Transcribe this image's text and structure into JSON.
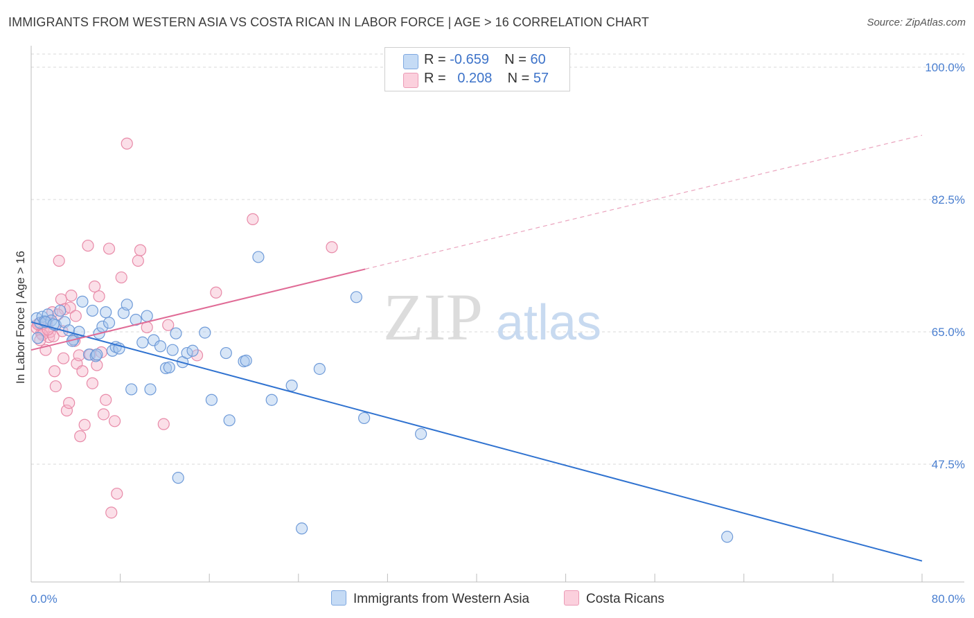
{
  "title": "IMMIGRANTS FROM WESTERN ASIA VS COSTA RICAN IN LABOR FORCE | AGE > 16 CORRELATION CHART",
  "source": "Source: ZipAtlas.com",
  "watermark": {
    "zip": "ZIP",
    "atlas": "atlas"
  },
  "legend": {
    "r_label": "R =",
    "n_label": "N =",
    "series": [
      {
        "name": "Immigrants from Western Asia",
        "r": "-0.659",
        "n": "60"
      },
      {
        "name": "Costa Ricans",
        "r": "0.208",
        "n": "57"
      }
    ]
  },
  "colors": {
    "blue_fill": "#a9c8ee",
    "blue_stroke": "#6e9ad8",
    "blue_line": "#2f72d0",
    "pink_fill": "#f6b9cb",
    "pink_stroke": "#e88aa8",
    "pink_line": "#e06b96",
    "tick": "#4a7fd0",
    "grid": "#d9d9d9"
  },
  "chart_data": {
    "type": "scatter",
    "title": "IMMIGRANTS FROM WESTERN ASIA VS COSTA RICAN IN LABOR FORCE | AGE > 16 CORRELATION CHART",
    "xlabel": "",
    "ylabel": "In Labor Force | Age > 16",
    "xlim": [
      0,
      80
    ],
    "ylim": [
      32.5,
      102
    ],
    "x_tick_labels": [
      "0.0%",
      "80.0%"
    ],
    "y_ticks": [
      47.5,
      65.0,
      82.5,
      100.0
    ],
    "y_tick_labels": [
      "47.5%",
      "65.0%",
      "82.5%",
      "100.0%"
    ],
    "grid": true,
    "series": [
      {
        "name": "Immigrants from Western Asia",
        "color": "blue",
        "points": [
          [
            0.5,
            66.8
          ],
          [
            0.8,
            66.2
          ],
          [
            1.0,
            67.0
          ],
          [
            1.2,
            66.4
          ],
          [
            1.5,
            67.3
          ],
          [
            1.8,
            66.5
          ],
          [
            2.2,
            65.9
          ],
          [
            2.6,
            67.8
          ],
          [
            3.0,
            66.3
          ],
          [
            3.4,
            65.2
          ],
          [
            3.8,
            64.0
          ],
          [
            4.3,
            65.0
          ],
          [
            4.6,
            69.0
          ],
          [
            5.2,
            62.0
          ],
          [
            5.5,
            67.8
          ],
          [
            5.8,
            61.8
          ],
          [
            6.1,
            64.8
          ],
          [
            6.4,
            65.7
          ],
          [
            6.7,
            67.6
          ],
          [
            7.0,
            66.2
          ],
          [
            7.3,
            62.5
          ],
          [
            7.6,
            63.0
          ],
          [
            7.9,
            62.8
          ],
          [
            8.3,
            67.5
          ],
          [
            8.6,
            68.6
          ],
          [
            9.0,
            57.4
          ],
          [
            9.4,
            66.6
          ],
          [
            10.0,
            63.6
          ],
          [
            10.4,
            67.1
          ],
          [
            10.7,
            57.4
          ],
          [
            11.0,
            63.9
          ],
          [
            11.6,
            63.1
          ],
          [
            12.1,
            60.2
          ],
          [
            12.4,
            60.3
          ],
          [
            12.7,
            62.6
          ],
          [
            13.0,
            64.8
          ],
          [
            13.6,
            61.0
          ],
          [
            14.0,
            62.2
          ],
          [
            14.5,
            62.5
          ],
          [
            15.6,
            64.9
          ],
          [
            16.2,
            56.0
          ],
          [
            17.5,
            62.2
          ],
          [
            17.8,
            53.3
          ],
          [
            19.1,
            61.1
          ],
          [
            19.3,
            61.2
          ],
          [
            20.4,
            74.9
          ],
          [
            21.6,
            56.0
          ],
          [
            23.4,
            57.9
          ],
          [
            24.3,
            39.0
          ],
          [
            25.9,
            60.1
          ],
          [
            29.2,
            69.6
          ],
          [
            29.9,
            53.6
          ],
          [
            35.0,
            51.5
          ],
          [
            62.5,
            37.9
          ],
          [
            13.2,
            45.7
          ],
          [
            3.7,
            63.8
          ],
          [
            1.3,
            66.3
          ],
          [
            2.0,
            66.0
          ],
          [
            5.9,
            62.0
          ],
          [
            0.6,
            64.2
          ]
        ]
      },
      {
        "name": "Costa Ricans",
        "color": "pink",
        "points": [
          [
            0.5,
            65.5
          ],
          [
            0.7,
            66.1
          ],
          [
            0.9,
            64.8
          ],
          [
            1.1,
            65.2
          ],
          [
            1.3,
            62.6
          ],
          [
            1.4,
            66.2
          ],
          [
            1.6,
            64.3
          ],
          [
            1.7,
            65.0
          ],
          [
            1.9,
            67.6
          ],
          [
            2.1,
            59.8
          ],
          [
            2.2,
            57.8
          ],
          [
            2.5,
            74.4
          ],
          [
            2.7,
            69.3
          ],
          [
            2.8,
            65.1
          ],
          [
            3.0,
            68.0
          ],
          [
            3.2,
            54.6
          ],
          [
            3.4,
            55.6
          ],
          [
            3.6,
            69.8
          ],
          [
            3.9,
            63.8
          ],
          [
            4.1,
            60.8
          ],
          [
            4.3,
            61.9
          ],
          [
            4.4,
            51.2
          ],
          [
            4.6,
            59.8
          ],
          [
            4.8,
            52.7
          ],
          [
            5.1,
            76.4
          ],
          [
            5.3,
            62.0
          ],
          [
            5.5,
            58.2
          ],
          [
            5.7,
            71.0
          ],
          [
            5.9,
            60.6
          ],
          [
            6.1,
            69.7
          ],
          [
            6.3,
            62.3
          ],
          [
            6.5,
            54.1
          ],
          [
            6.7,
            56.0
          ],
          [
            7.0,
            76.0
          ],
          [
            7.2,
            41.1
          ],
          [
            7.5,
            53.2
          ],
          [
            7.7,
            43.6
          ],
          [
            8.1,
            72.2
          ],
          [
            8.6,
            89.9
          ],
          [
            9.6,
            74.4
          ],
          [
            9.8,
            75.8
          ],
          [
            10.4,
            65.6
          ],
          [
            11.9,
            52.8
          ],
          [
            12.3,
            65.9
          ],
          [
            14.9,
            61.9
          ],
          [
            16.6,
            70.2
          ],
          [
            19.9,
            79.9
          ],
          [
            27.0,
            76.2
          ],
          [
            0.6,
            66.0
          ],
          [
            1.0,
            64.6
          ],
          [
            2.0,
            64.4
          ],
          [
            2.4,
            67.3
          ],
          [
            3.5,
            68.2
          ],
          [
            4.0,
            67.1
          ],
          [
            1.5,
            65.3
          ],
          [
            2.9,
            61.5
          ],
          [
            0.8,
            63.9
          ]
        ]
      }
    ],
    "trend_lines": [
      {
        "series": "Immigrants from Western Asia",
        "x": [
          0,
          80
        ],
        "y": [
          66.3,
          34.7
        ],
        "dashed_extension": false
      },
      {
        "series": "Costa Ricans",
        "x": [
          0,
          30
        ],
        "y": [
          62.6,
          73.3
        ],
        "dashed_to": [
          80,
          91.0
        ]
      }
    ]
  }
}
